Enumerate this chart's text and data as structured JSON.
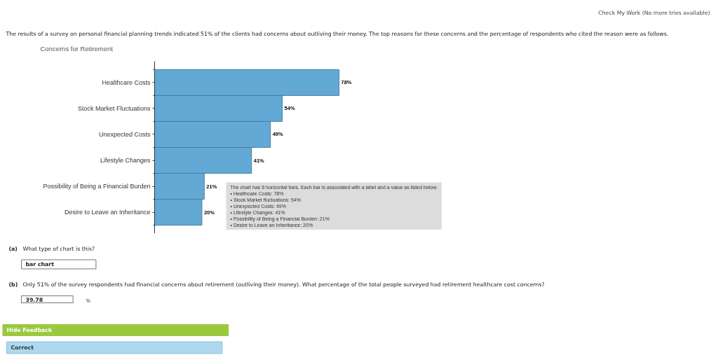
{
  "chart_data": {
    "type": "bar",
    "orientation": "horizontal",
    "title": "Concerns for Retirement",
    "categories": [
      "Healthcare Costs",
      "Stock Market Fluctuations",
      "Unexpected Costs",
      "Lifestyle Changes",
      "Possibility of Being a Financial Burden",
      "Desire to Leave an Inheritance"
    ],
    "values": [
      78,
      54,
      49,
      41,
      21,
      20
    ],
    "value_labels": [
      "78%",
      "54%",
      "49%",
      "41%",
      "21%",
      "20%"
    ],
    "color": "#63a9d5",
    "tick_labels": "y",
    "annotations": [
      "Check My Work (No more tries available)",
      "The results of a survey on personal financial planning trends indicated 51% of the clients had concerns about outliving their money. The top reasons for these concerns and the percentage of respondents who cited the reason were as follows.",
      "The chart has 6 horizontal bars. Each bar is associated with a label and a value as listed below.",
      "• Healthcare Costs: 78%",
      "• Stock Market fluctuations: 54%",
      "• Unexpected Costs: 49%",
      "• Lifestyle Changes: 41%",
      "• Possibility of Being a Financial Burden: 21%",
      "• Desire to Leave an Inheritance: 20%",
      "(a)",
      "What type of chart is this?",
      "bar chart",
      "(b)",
      "Only 51% of the survey respondents had financial concerns about retirement (outliving their money). What percentage of the total people surveyed had retirement healthcare cost concerns?",
      "39.78",
      "%",
      "Hide Feedback",
      "Correct"
    ]
  }
}
